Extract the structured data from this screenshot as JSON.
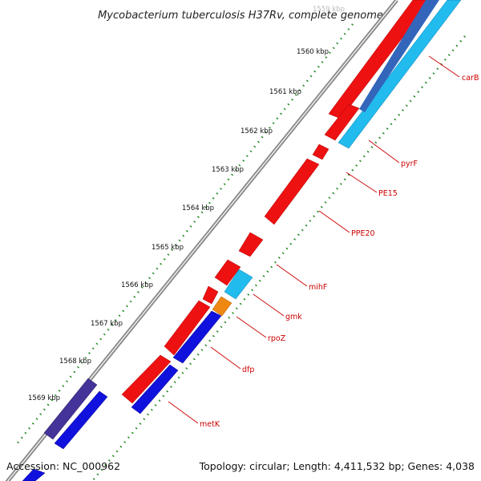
{
  "title": "Mycobacterium tuberculosis H37Rv, complete genome",
  "accession": "Accession: NC_000962",
  "topology": "Topology: circular; Length: 4,411,532 bp; Genes: 4,038",
  "ticks": [
    "1559 kbp",
    "1560 kbp",
    "1561 kbp",
    "1562 kbp",
    "1563 kbp",
    "1564 kbp",
    "1565 kbp",
    "1566 kbp",
    "1567 kbp",
    "1568 kbp",
    "1569 kbp"
  ],
  "gene_labels": [
    "carB",
    "pyrF",
    "PE15",
    "PPE20",
    "mihF",
    "gmk",
    "rpoZ",
    "dfp",
    "metK"
  ],
  "colors": {
    "red": "#ee1111",
    "cyan": "#22bbee",
    "blue": "#1111dd",
    "dark_slate_blue": "#443399",
    "orange": "#ee8811",
    "backbone": "#9a9a9a",
    "tick_green": "#228822",
    "label_red": "#cc0000"
  }
}
